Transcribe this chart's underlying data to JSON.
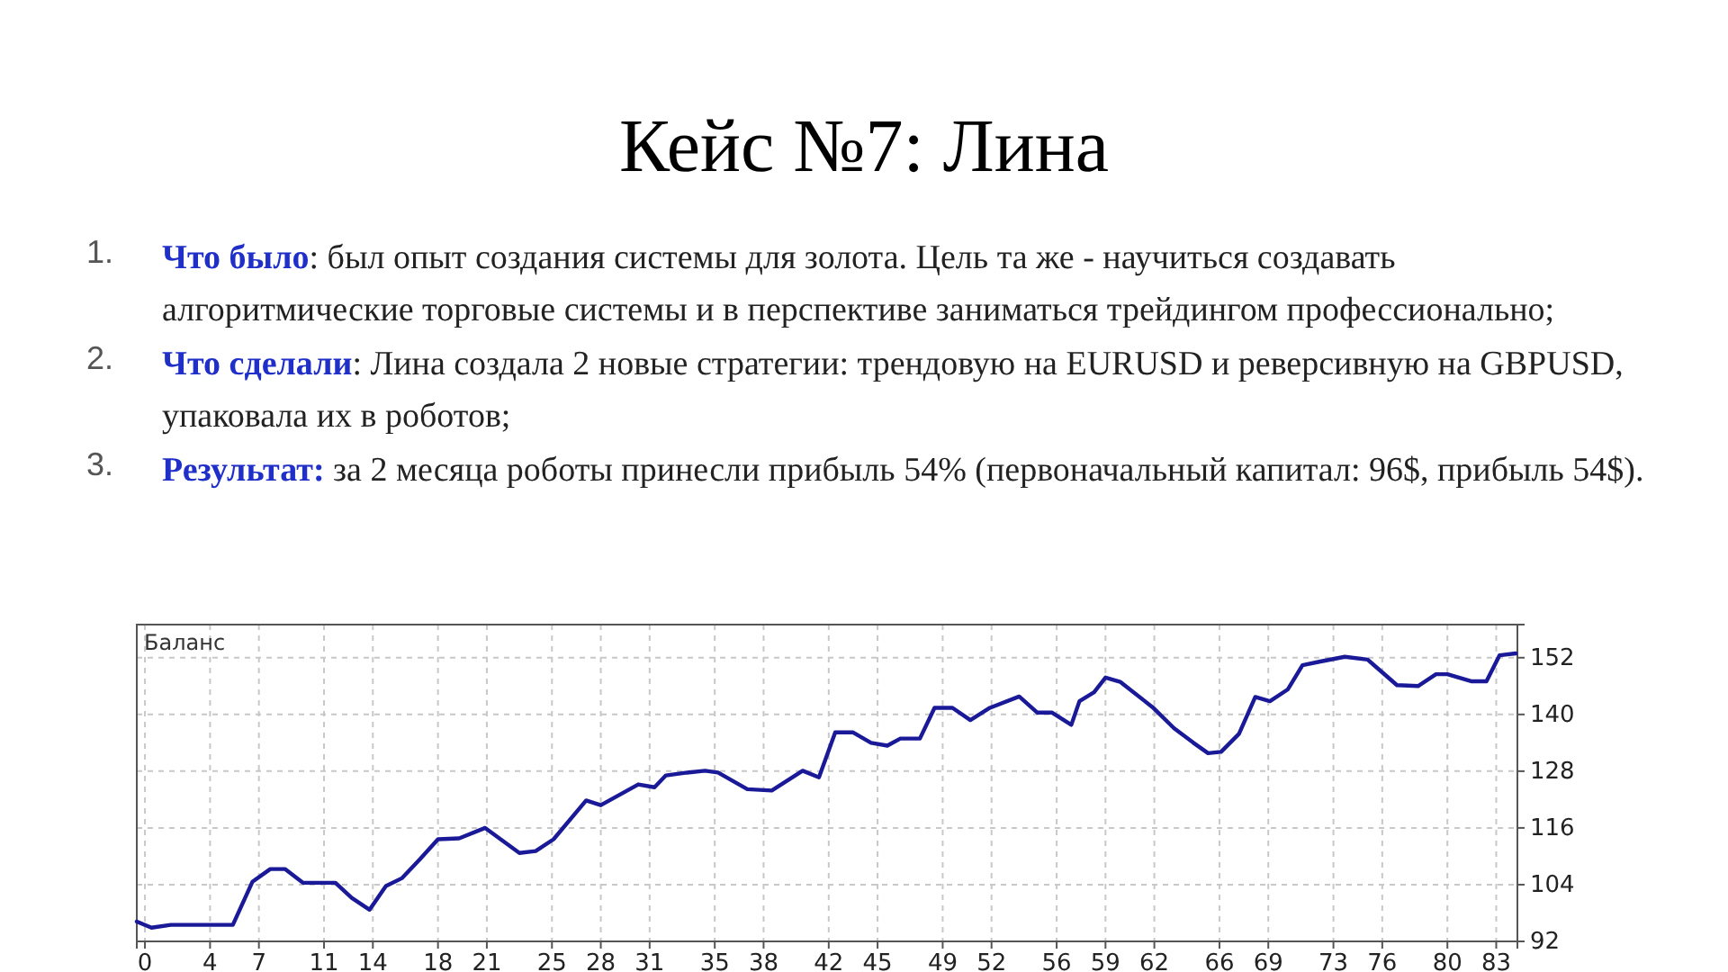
{
  "chart_data": {
    "type": "line",
    "title": "Кейс №7: Лина",
    "annotations": [
      "1.",
      "Что было",
      ": был опыт создания системы для золота. Цель та же - научиться создавать алгоритмические торговые системы и в перспективе заниматься трейдингом профессионально;",
      "2.",
      "Что сделали",
      ": Лина создала 2 новые стратегии: трендовую на EURUSD и реверсивную на GBPUSD, упаковала их в роботов;",
      "3.",
      "Результат:",
      " за 2 месяца роботы принесли прибыль 54% (первоначальный капитал: 96$, прибыль 54$)."
    ],
    "ylabel": "Баланс",
    "series": [
      {
        "color": "#1a1a99",
        "x": [
          -0.5,
          0.4,
          1.6,
          5.4,
          6.6,
          7.7,
          8.6,
          9.7,
          11.7,
          12.7,
          13.8,
          14.8,
          15.8,
          16.9,
          18.0,
          19.3,
          20.9,
          23.0,
          24.0,
          25.1,
          27.1,
          28.0,
          30.3,
          31.3,
          32.0,
          33.3,
          34.4,
          35.2,
          37.0,
          38.5,
          40.4,
          41.4,
          42.4,
          43.5,
          44.6,
          45.6,
          46.4,
          47.6,
          48.5,
          49.6,
          50.7,
          51.9,
          53.7,
          54.8,
          55.7,
          56.9,
          57.4,
          58.3,
          59.0,
          59.9,
          61.9,
          63.2,
          64.4,
          65.3,
          66.1,
          67.2,
          68.2,
          69.1,
          70.2,
          71.1,
          72.2,
          73.7,
          75.1,
          76.9,
          78.2,
          79.3,
          80.0,
          81.5,
          82.4,
          83.2,
          84.2
        ],
        "values": [
          96.2,
          94.9,
          95.5,
          95.5,
          104.6,
          107.3,
          107.3,
          104.4,
          104.4,
          101.2,
          98.7,
          103.7,
          105.4,
          109.4,
          113.6,
          113.8,
          116.0,
          110.7,
          111.1,
          113.6,
          121.8,
          120.8,
          125.2,
          124.6,
          127.1,
          127.7,
          128.1,
          127.7,
          124.2,
          123.9,
          128.1,
          126.7,
          136.2,
          136.2,
          134.0,
          133.4,
          134.9,
          134.9,
          141.4,
          141.4,
          138.8,
          141.4,
          143.8,
          140.4,
          140.4,
          137.8,
          142.8,
          144.7,
          147.8,
          146.9,
          141.5,
          137.1,
          134.0,
          131.8,
          132.1,
          135.9,
          143.7,
          142.8,
          145.3,
          150.4,
          151.2,
          152.2,
          151.6,
          146.2,
          146.0,
          148.5,
          148.5,
          147.0,
          147.0,
          152.5,
          152.9
        ]
      }
    ],
    "xlim": [
      -0.5,
      84.3
    ],
    "ylim": [
      92,
      159
    ],
    "xticks": [
      0,
      4,
      7,
      11,
      14,
      18,
      21,
      25,
      28,
      31,
      35,
      38,
      42,
      45,
      49,
      52,
      56,
      59,
      62,
      66,
      69,
      73,
      76,
      80,
      83
    ],
    "yticks": [
      92,
      104,
      116,
      128,
      140,
      152
    ],
    "grid": true,
    "marker": "none",
    "line_style": "solid"
  }
}
